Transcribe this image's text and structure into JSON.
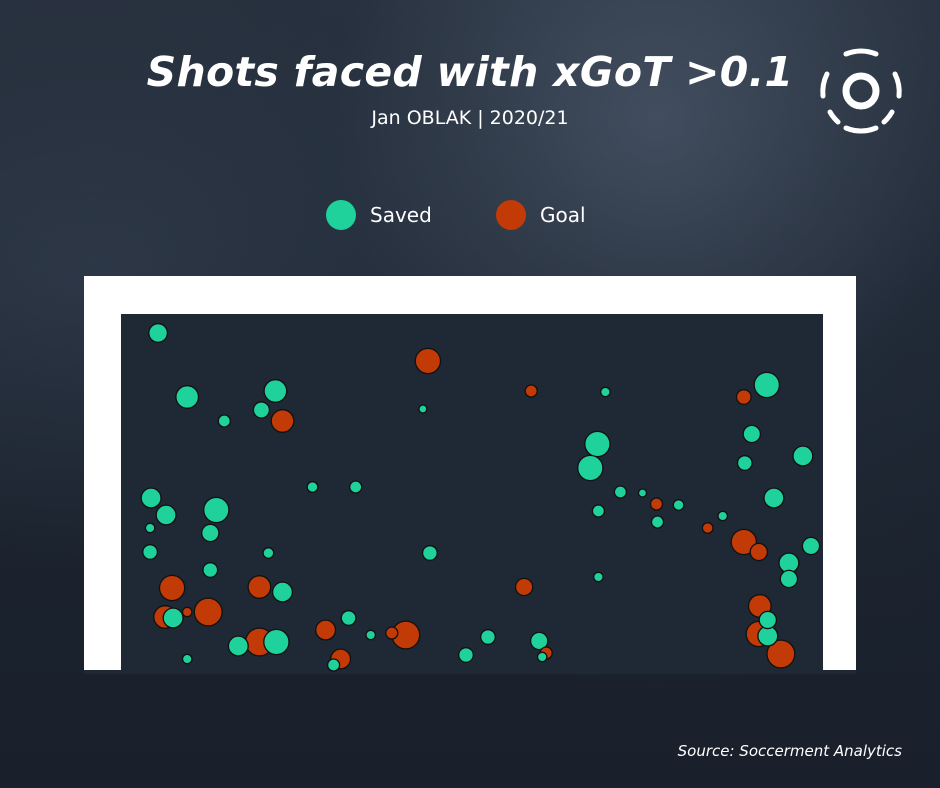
{
  "title": "Shots faced with xGoT >0.1",
  "subtitle": "Jan OBLAK | 2020/21",
  "source": "Source: Soccerment Analytics",
  "logo_icon": "soccerment-logo-icon",
  "colors": {
    "saved": "#1fd19b",
    "goal": "#c23a06",
    "frame": "#ffffff",
    "plot_bg": "#1f2835"
  },
  "legend": [
    {
      "label": "Saved",
      "color": "#1fd19b"
    },
    {
      "label": "Goal",
      "color": "#c23a06"
    }
  ],
  "chart_data": {
    "type": "scatter",
    "xlim": [
      0,
      700
    ],
    "ylim": [
      0,
      356
    ],
    "series": [
      {
        "name": "Saved",
        "points": [
          {
            "x": 37,
            "y": 337,
            "s": 0.15
          },
          {
            "x": 66,
            "y": 273,
            "s": 0.18
          },
          {
            "x": 103,
            "y": 249,
            "s": 0.1
          },
          {
            "x": 140,
            "y": 260,
            "s": 0.13
          },
          {
            "x": 154,
            "y": 279,
            "s": 0.18
          },
          {
            "x": 30,
            "y": 172,
            "s": 0.16
          },
          {
            "x": 45,
            "y": 155,
            "s": 0.16
          },
          {
            "x": 29,
            "y": 142,
            "s": 0.08
          },
          {
            "x": 95,
            "y": 160,
            "s": 0.2
          },
          {
            "x": 89,
            "y": 137,
            "s": 0.14
          },
          {
            "x": 29,
            "y": 118,
            "s": 0.12
          },
          {
            "x": 89,
            "y": 100,
            "s": 0.12
          },
          {
            "x": 147,
            "y": 117,
            "s": 0.09
          },
          {
            "x": 191,
            "y": 183,
            "s": 0.09
          },
          {
            "x": 234,
            "y": 183,
            "s": 0.1
          },
          {
            "x": 301,
            "y": 261,
            "s": 0.07
          },
          {
            "x": 483,
            "y": 278,
            "s": 0.08
          },
          {
            "x": 475,
            "y": 226,
            "s": 0.2
          },
          {
            "x": 468,
            "y": 202,
            "s": 0.2
          },
          {
            "x": 498,
            "y": 178,
            "s": 0.1
          },
          {
            "x": 520,
            "y": 177,
            "s": 0.07
          },
          {
            "x": 476,
            "y": 159,
            "s": 0.1
          },
          {
            "x": 535,
            "y": 148,
            "s": 0.1
          },
          {
            "x": 556,
            "y": 165,
            "s": 0.09
          },
          {
            "x": 600,
            "y": 154,
            "s": 0.08
          },
          {
            "x": 644,
            "y": 285,
            "s": 0.2
          },
          {
            "x": 629,
            "y": 236,
            "s": 0.14
          },
          {
            "x": 622,
            "y": 207,
            "s": 0.12
          },
          {
            "x": 680,
            "y": 214,
            "s": 0.16
          },
          {
            "x": 651,
            "y": 172,
            "s": 0.16
          },
          {
            "x": 688,
            "y": 124,
            "s": 0.14
          },
          {
            "x": 666,
            "y": 107,
            "s": 0.16
          },
          {
            "x": 666,
            "y": 91,
            "s": 0.14
          },
          {
            "x": 308,
            "y": 117,
            "s": 0.12
          },
          {
            "x": 476,
            "y": 93,
            "s": 0.08
          },
          {
            "x": 161,
            "y": 78,
            "s": 0.16
          },
          {
            "x": 52,
            "y": 52,
            "s": 0.16
          },
          {
            "x": 227,
            "y": 52,
            "s": 0.12
          },
          {
            "x": 249,
            "y": 35,
            "s": 0.08
          },
          {
            "x": 155,
            "y": 28,
            "s": 0.2
          },
          {
            "x": 117,
            "y": 24,
            "s": 0.16
          },
          {
            "x": 66,
            "y": 11,
            "s": 0.08
          },
          {
            "x": 212,
            "y": 5,
            "s": 0.1
          },
          {
            "x": 366,
            "y": 33,
            "s": 0.12
          },
          {
            "x": 344,
            "y": 15,
            "s": 0.12
          },
          {
            "x": 417,
            "y": 29,
            "s": 0.14
          },
          {
            "x": 420,
            "y": 13,
            "s": 0.08
          },
          {
            "x": 645,
            "y": 34,
            "s": 0.16
          },
          {
            "x": 645,
            "y": 50,
            "s": 0.14
          }
        ]
      },
      {
        "name": "Goal",
        "points": [
          {
            "x": 306,
            "y": 309,
            "s": 0.2
          },
          {
            "x": 409,
            "y": 279,
            "s": 0.1
          },
          {
            "x": 621,
            "y": 273,
            "s": 0.12
          },
          {
            "x": 161,
            "y": 249,
            "s": 0.18
          },
          {
            "x": 534,
            "y": 166,
            "s": 0.1
          },
          {
            "x": 585,
            "y": 142,
            "s": 0.09
          },
          {
            "x": 621,
            "y": 128,
            "s": 0.2
          },
          {
            "x": 636,
            "y": 118,
            "s": 0.14
          },
          {
            "x": 51,
            "y": 82,
            "s": 0.2
          },
          {
            "x": 138,
            "y": 83,
            "s": 0.18
          },
          {
            "x": 402,
            "y": 83,
            "s": 0.14
          },
          {
            "x": 66,
            "y": 58,
            "s": 0.08
          },
          {
            "x": 44,
            "y": 53,
            "s": 0.18
          },
          {
            "x": 87,
            "y": 58,
            "s": 0.22
          },
          {
            "x": 637,
            "y": 64,
            "s": 0.18
          },
          {
            "x": 636,
            "y": 36,
            "s": 0.2
          },
          {
            "x": 204,
            "y": 40,
            "s": 0.16
          },
          {
            "x": 270,
            "y": 37,
            "s": 0.1
          },
          {
            "x": 284,
            "y": 35,
            "s": 0.22
          },
          {
            "x": 138,
            "y": 28,
            "s": 0.22
          },
          {
            "x": 219,
            "y": 11,
            "s": 0.16
          },
          {
            "x": 424,
            "y": 17,
            "s": 0.1
          },
          {
            "x": 658,
            "y": 16,
            "s": 0.22
          }
        ]
      }
    ]
  }
}
